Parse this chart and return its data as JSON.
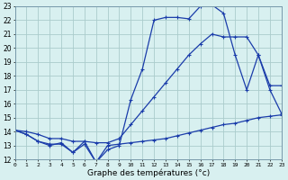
{
  "x_ticks": [
    0,
    1,
    2,
    3,
    4,
    5,
    6,
    7,
    8,
    9,
    10,
    11,
    12,
    13,
    14,
    15,
    16,
    17,
    18,
    19,
    20,
    21,
    22,
    23
  ],
  "line1_x": [
    0,
    1,
    2,
    3,
    4,
    5,
    6,
    7,
    8,
    9,
    10,
    11,
    12,
    13,
    14,
    15,
    16,
    17,
    18,
    19,
    20,
    21,
    22,
    23
  ],
  "line1_y": [
    14.1,
    13.8,
    13.3,
    13.0,
    13.2,
    12.5,
    13.3,
    11.8,
    12.7,
    13.0,
    16.3,
    18.5,
    22.0,
    22.2,
    22.2,
    22.1,
    23.0,
    23.1,
    22.5,
    19.5,
    17.0,
    19.5,
    17.3,
    17.3
  ],
  "line2_x": [
    0,
    1,
    2,
    3,
    4,
    5,
    6,
    7,
    8,
    9,
    10,
    11,
    12,
    13,
    14,
    15,
    16,
    17,
    18,
    19,
    20,
    21,
    22,
    23
  ],
  "line2_y": [
    14.1,
    14.0,
    13.8,
    13.5,
    13.5,
    13.3,
    13.3,
    13.2,
    13.2,
    13.5,
    14.5,
    15.5,
    16.5,
    17.5,
    18.5,
    19.5,
    20.3,
    21.0,
    20.8,
    20.8,
    20.8,
    19.5,
    17.0,
    15.3
  ],
  "line3_x": [
    0,
    1,
    2,
    3,
    4,
    5,
    6,
    7,
    8,
    9,
    10,
    11,
    12,
    13,
    14,
    15,
    16,
    17,
    18,
    19,
    20,
    21,
    22,
    23
  ],
  "line3_y": [
    14.1,
    13.8,
    13.3,
    13.1,
    13.1,
    12.5,
    13.1,
    11.8,
    13.0,
    13.1,
    13.2,
    13.3,
    13.4,
    13.5,
    13.7,
    13.9,
    14.1,
    14.3,
    14.5,
    14.6,
    14.8,
    15.0,
    15.1,
    15.2
  ],
  "line_color": "#1a3caa",
  "marker": "+",
  "markersize": 3,
  "linewidth": 0.9,
  "bg_color": "#d8f0f0",
  "grid_color": "#aacccc",
  "xlabel": "Graphe des températures (°c)",
  "ylim": [
    12,
    23
  ],
  "xlim": [
    0,
    23
  ],
  "yticks": [
    12,
    13,
    14,
    15,
    16,
    17,
    18,
    19,
    20,
    21,
    22,
    23
  ]
}
